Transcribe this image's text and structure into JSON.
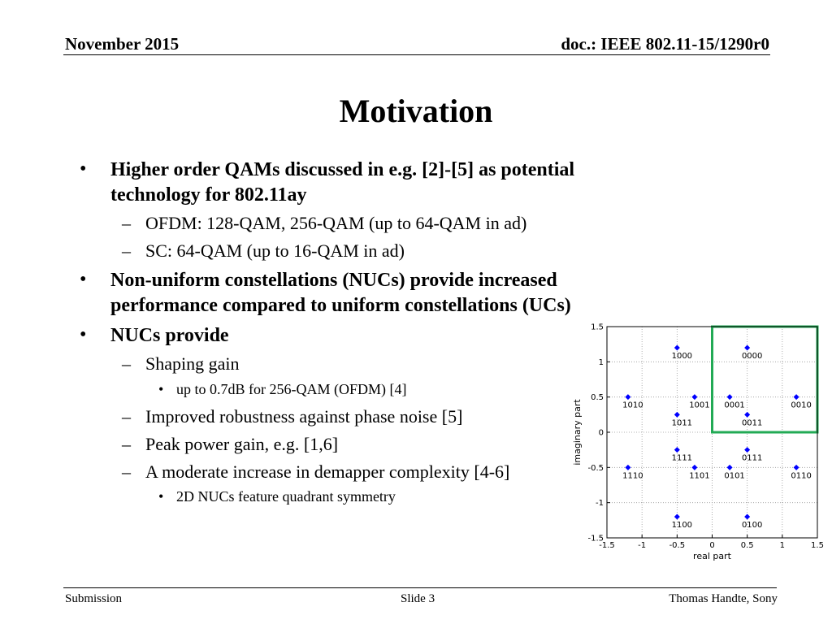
{
  "header": {
    "date": "November 2015",
    "doc": "doc.: IEEE 802.11-15/1290r0"
  },
  "title": "Motivation",
  "bullets": {
    "b1_line1": "Higher order QAMs discussed in e.g. [2]-[5] as potential",
    "b1_line2": "technology for 802.11ay",
    "b1_sub1": "OFDM: 128-QAM, 256-QAM (up to 64-QAM in ad)",
    "b1_sub2": "SC: 64-QAM (up to 16-QAM in ad)",
    "b2_line1": "Non-uniform constellations (NUCs) provide increased",
    "b2_line2": "performance compared to uniform constellations (UCs)",
    "b3_line1": "NUCs provide",
    "b3_sub1": "Shaping gain",
    "b3_sub1_sub1": "up to 0.7dB for 256-QAM (OFDM) [4]",
    "b3_sub2": "Improved robustness against phase noise [5]",
    "b3_sub3": "Peak power gain, e.g. [1,6]",
    "b3_sub4": "A moderate increase in demapper complexity [4-6]",
    "b3_sub4_sub1": "2D NUCs feature quadrant symmetry"
  },
  "footer": {
    "left": "Submission",
    "center": "Slide 3",
    "right": "Thomas Handte, Sony"
  },
  "chart_data": {
    "type": "scatter",
    "xlabel": "real part",
    "ylabel": "imaginary part",
    "xlim": [
      -1.5,
      1.5
    ],
    "ylim": [
      -1.5,
      1.5
    ],
    "xticks": [
      "-1.5",
      "-1",
      "-0.5",
      "0",
      "0.5",
      "1",
      "1.5"
    ],
    "yticks": [
      "-1.5",
      "-1",
      "-0.5",
      "0",
      "0.5",
      "1",
      "1.5"
    ],
    "grid": true,
    "marker_color": "#0000ff",
    "highlight_color": "#22aa55",
    "highlight_region": {
      "x": [
        0,
        1.5
      ],
      "y": [
        0,
        1.5
      ]
    },
    "points": [
      {
        "x": -0.5,
        "y": 1.2,
        "label": "1000"
      },
      {
        "x": 0.5,
        "y": 1.2,
        "label": "0000"
      },
      {
        "x": -1.2,
        "y": 0.5,
        "label": "1010"
      },
      {
        "x": -0.25,
        "y": 0.5,
        "label": "1001"
      },
      {
        "x": 0.25,
        "y": 0.5,
        "label": "0001"
      },
      {
        "x": 1.2,
        "y": 0.5,
        "label": "0010"
      },
      {
        "x": -0.5,
        "y": 0.25,
        "label": "1011"
      },
      {
        "x": 0.5,
        "y": 0.25,
        "label": "0011"
      },
      {
        "x": -0.5,
        "y": -0.25,
        "label": "1111"
      },
      {
        "x": 0.5,
        "y": -0.25,
        "label": "0111"
      },
      {
        "x": -1.2,
        "y": -0.5,
        "label": "1110"
      },
      {
        "x": -0.25,
        "y": -0.5,
        "label": "1101"
      },
      {
        "x": 0.25,
        "y": -0.5,
        "label": "0101"
      },
      {
        "x": 1.2,
        "y": -0.5,
        "label": "0110"
      },
      {
        "x": -0.5,
        "y": -1.2,
        "label": "1100"
      },
      {
        "x": 0.5,
        "y": -1.2,
        "label": "0100"
      }
    ]
  }
}
